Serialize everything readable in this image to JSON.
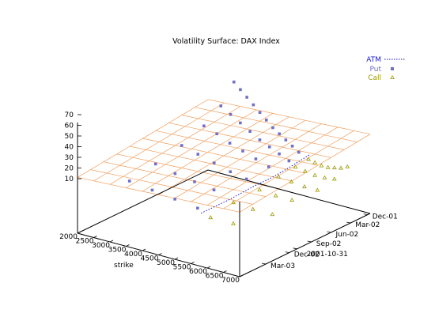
{
  "chart_data": {
    "type": "scatter",
    "title": "Volatility Surface: DAX Index",
    "xlabel": "strike",
    "ylabel": "",
    "zlabel": "",
    "x_ticks": [
      "2000",
      "2500",
      "3000",
      "3500",
      "4000",
      "4500",
      "5000",
      "5500",
      "6000",
      "6500",
      "7000"
    ],
    "y_ticks": [
      "Dec-01",
      "Mar-02",
      "Jun-02",
      "Sep-02",
      "2001-10-31",
      "Dec-02",
      "Mar-03"
    ],
    "z_ticks": [
      "70",
      "60",
      "50",
      "40",
      "30",
      "20",
      "10"
    ],
    "xlim": [
      2000,
      7000
    ],
    "zlim": [
      0,
      70
    ],
    "legend_position": "top-right",
    "grid": true,
    "colors": {
      "surface": "#f0a060",
      "atm": "#1a1acc",
      "put": "#7070c8",
      "call": "#9a9a00",
      "axis": "#000000"
    },
    "series": [
      {
        "name": "ATM",
        "style": "dashed-line",
        "points": [
          {
            "strike": 5200,
            "maturity": 0.02,
            "vol": 30
          },
          {
            "strike": 5200,
            "maturity": 0.1,
            "vol": 29
          },
          {
            "strike": 5200,
            "maturity": 0.18,
            "vol": 28
          },
          {
            "strike": 5200,
            "maturity": 0.3,
            "vol": 27
          },
          {
            "strike": 5200,
            "maturity": 0.45,
            "vol": 27
          },
          {
            "strike": 5200,
            "maturity": 0.62,
            "vol": 26
          },
          {
            "strike": 5200,
            "maturity": 0.85,
            "vol": 26
          }
        ]
      },
      {
        "name": "Put",
        "style": "square",
        "points": [
          {
            "strike": 3000,
            "maturity": 0.05,
            "vol": 68
          },
          {
            "strike": 3200,
            "maturity": 0.05,
            "vol": 64
          },
          {
            "strike": 3400,
            "maturity": 0.05,
            "vol": 60
          },
          {
            "strike": 3600,
            "maturity": 0.05,
            "vol": 56
          },
          {
            "strike": 3800,
            "maturity": 0.05,
            "vol": 52
          },
          {
            "strike": 4000,
            "maturity": 0.05,
            "vol": 48
          },
          {
            "strike": 4200,
            "maturity": 0.05,
            "vol": 44
          },
          {
            "strike": 4400,
            "maturity": 0.05,
            "vol": 41
          },
          {
            "strike": 4600,
            "maturity": 0.05,
            "vol": 38
          },
          {
            "strike": 4800,
            "maturity": 0.05,
            "vol": 35
          },
          {
            "strike": 5000,
            "maturity": 0.05,
            "vol": 32
          },
          {
            "strike": 3000,
            "maturity": 0.15,
            "vol": 56
          },
          {
            "strike": 3300,
            "maturity": 0.15,
            "vol": 52
          },
          {
            "strike": 3600,
            "maturity": 0.15,
            "vol": 48
          },
          {
            "strike": 3900,
            "maturity": 0.15,
            "vol": 44
          },
          {
            "strike": 4200,
            "maturity": 0.15,
            "vol": 40
          },
          {
            "strike": 4500,
            "maturity": 0.15,
            "vol": 37
          },
          {
            "strike": 4800,
            "maturity": 0.15,
            "vol": 34
          },
          {
            "strike": 5100,
            "maturity": 0.15,
            "vol": 31
          },
          {
            "strike": 3000,
            "maturity": 0.28,
            "vol": 48
          },
          {
            "strike": 3400,
            "maturity": 0.28,
            "vol": 45
          },
          {
            "strike": 3800,
            "maturity": 0.28,
            "vol": 41
          },
          {
            "strike": 4200,
            "maturity": 0.28,
            "vol": 38
          },
          {
            "strike": 4600,
            "maturity": 0.28,
            "vol": 35
          },
          {
            "strike": 5000,
            "maturity": 0.28,
            "vol": 32
          },
          {
            "strike": 3000,
            "maturity": 0.45,
            "vol": 42
          },
          {
            "strike": 3500,
            "maturity": 0.45,
            "vol": 39
          },
          {
            "strike": 4000,
            "maturity": 0.45,
            "vol": 36
          },
          {
            "strike": 4500,
            "maturity": 0.45,
            "vol": 33
          },
          {
            "strike": 5000,
            "maturity": 0.45,
            "vol": 31
          },
          {
            "strike": 3000,
            "maturity": 0.65,
            "vol": 38
          },
          {
            "strike": 3600,
            "maturity": 0.65,
            "vol": 35
          },
          {
            "strike": 4200,
            "maturity": 0.65,
            "vol": 33
          },
          {
            "strike": 4800,
            "maturity": 0.65,
            "vol": 31
          },
          {
            "strike": 3000,
            "maturity": 0.85,
            "vol": 35
          },
          {
            "strike": 3700,
            "maturity": 0.85,
            "vol": 33
          },
          {
            "strike": 4400,
            "maturity": 0.85,
            "vol": 31
          },
          {
            "strike": 5100,
            "maturity": 0.85,
            "vol": 29
          }
        ]
      },
      {
        "name": "Call",
        "style": "triangle",
        "points": [
          {
            "strike": 5300,
            "maturity": 0.05,
            "vol": 29
          },
          {
            "strike": 5500,
            "maturity": 0.05,
            "vol": 28
          },
          {
            "strike": 5700,
            "maturity": 0.05,
            "vol": 27
          },
          {
            "strike": 5900,
            "maturity": 0.05,
            "vol": 27
          },
          {
            "strike": 6100,
            "maturity": 0.05,
            "vol": 28
          },
          {
            "strike": 6300,
            "maturity": 0.05,
            "vol": 29
          },
          {
            "strike": 6500,
            "maturity": 0.05,
            "vol": 31
          },
          {
            "strike": 5300,
            "maturity": 0.15,
            "vol": 28
          },
          {
            "strike": 5600,
            "maturity": 0.15,
            "vol": 27
          },
          {
            "strike": 5900,
            "maturity": 0.15,
            "vol": 26
          },
          {
            "strike": 6200,
            "maturity": 0.15,
            "vol": 26
          },
          {
            "strike": 6500,
            "maturity": 0.15,
            "vol": 27
          },
          {
            "strike": 5300,
            "maturity": 0.28,
            "vol": 27
          },
          {
            "strike": 5700,
            "maturity": 0.28,
            "vol": 26
          },
          {
            "strike": 6100,
            "maturity": 0.28,
            "vol": 25
          },
          {
            "strike": 6500,
            "maturity": 0.28,
            "vol": 25
          },
          {
            "strike": 5400,
            "maturity": 0.45,
            "vol": 26
          },
          {
            "strike": 5900,
            "maturity": 0.45,
            "vol": 25
          },
          {
            "strike": 6400,
            "maturity": 0.45,
            "vol": 25
          },
          {
            "strike": 5400,
            "maturity": 0.65,
            "vol": 26
          },
          {
            "strike": 6000,
            "maturity": 0.65,
            "vol": 25
          },
          {
            "strike": 6600,
            "maturity": 0.65,
            "vol": 25
          },
          {
            "strike": 5500,
            "maturity": 0.85,
            "vol": 25
          },
          {
            "strike": 6200,
            "maturity": 0.85,
            "vol": 25
          }
        ]
      }
    ]
  }
}
